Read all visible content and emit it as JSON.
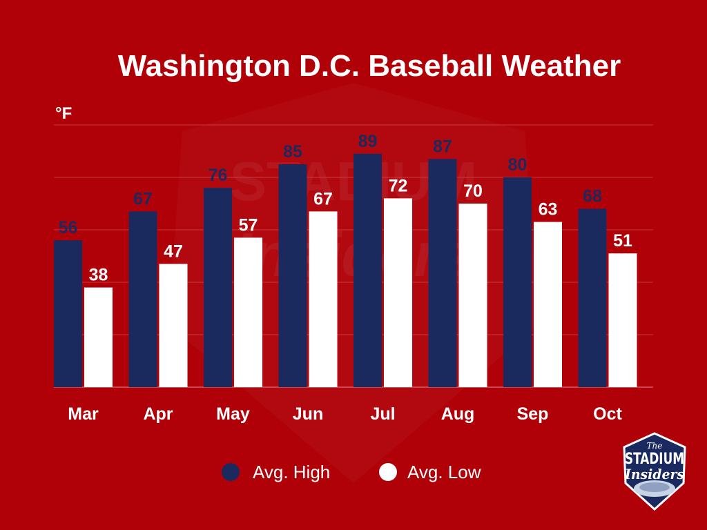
{
  "chart_data": {
    "type": "bar",
    "title": "Washington D.C. Baseball Weather",
    "ylabel": "°F",
    "xlabel": "",
    "categories": [
      "Mar",
      "Apr",
      "May",
      "Jun",
      "Jul",
      "Aug",
      "Sep",
      "Oct"
    ],
    "series": [
      {
        "name": "Avg. High",
        "color": "#1b2a5e",
        "values": [
          56,
          67,
          76,
          85,
          89,
          87,
          80,
          68
        ]
      },
      {
        "name": "Avg. Low",
        "color": "#ffffff",
        "values": [
          38,
          47,
          57,
          67,
          72,
          70,
          63,
          51
        ]
      }
    ],
    "ylim": [
      0,
      100
    ],
    "grid": true,
    "legend": "bottom-center"
  },
  "logo": {
    "the": "The",
    "line1": "STADIUM",
    "line2": "Insiders"
  }
}
